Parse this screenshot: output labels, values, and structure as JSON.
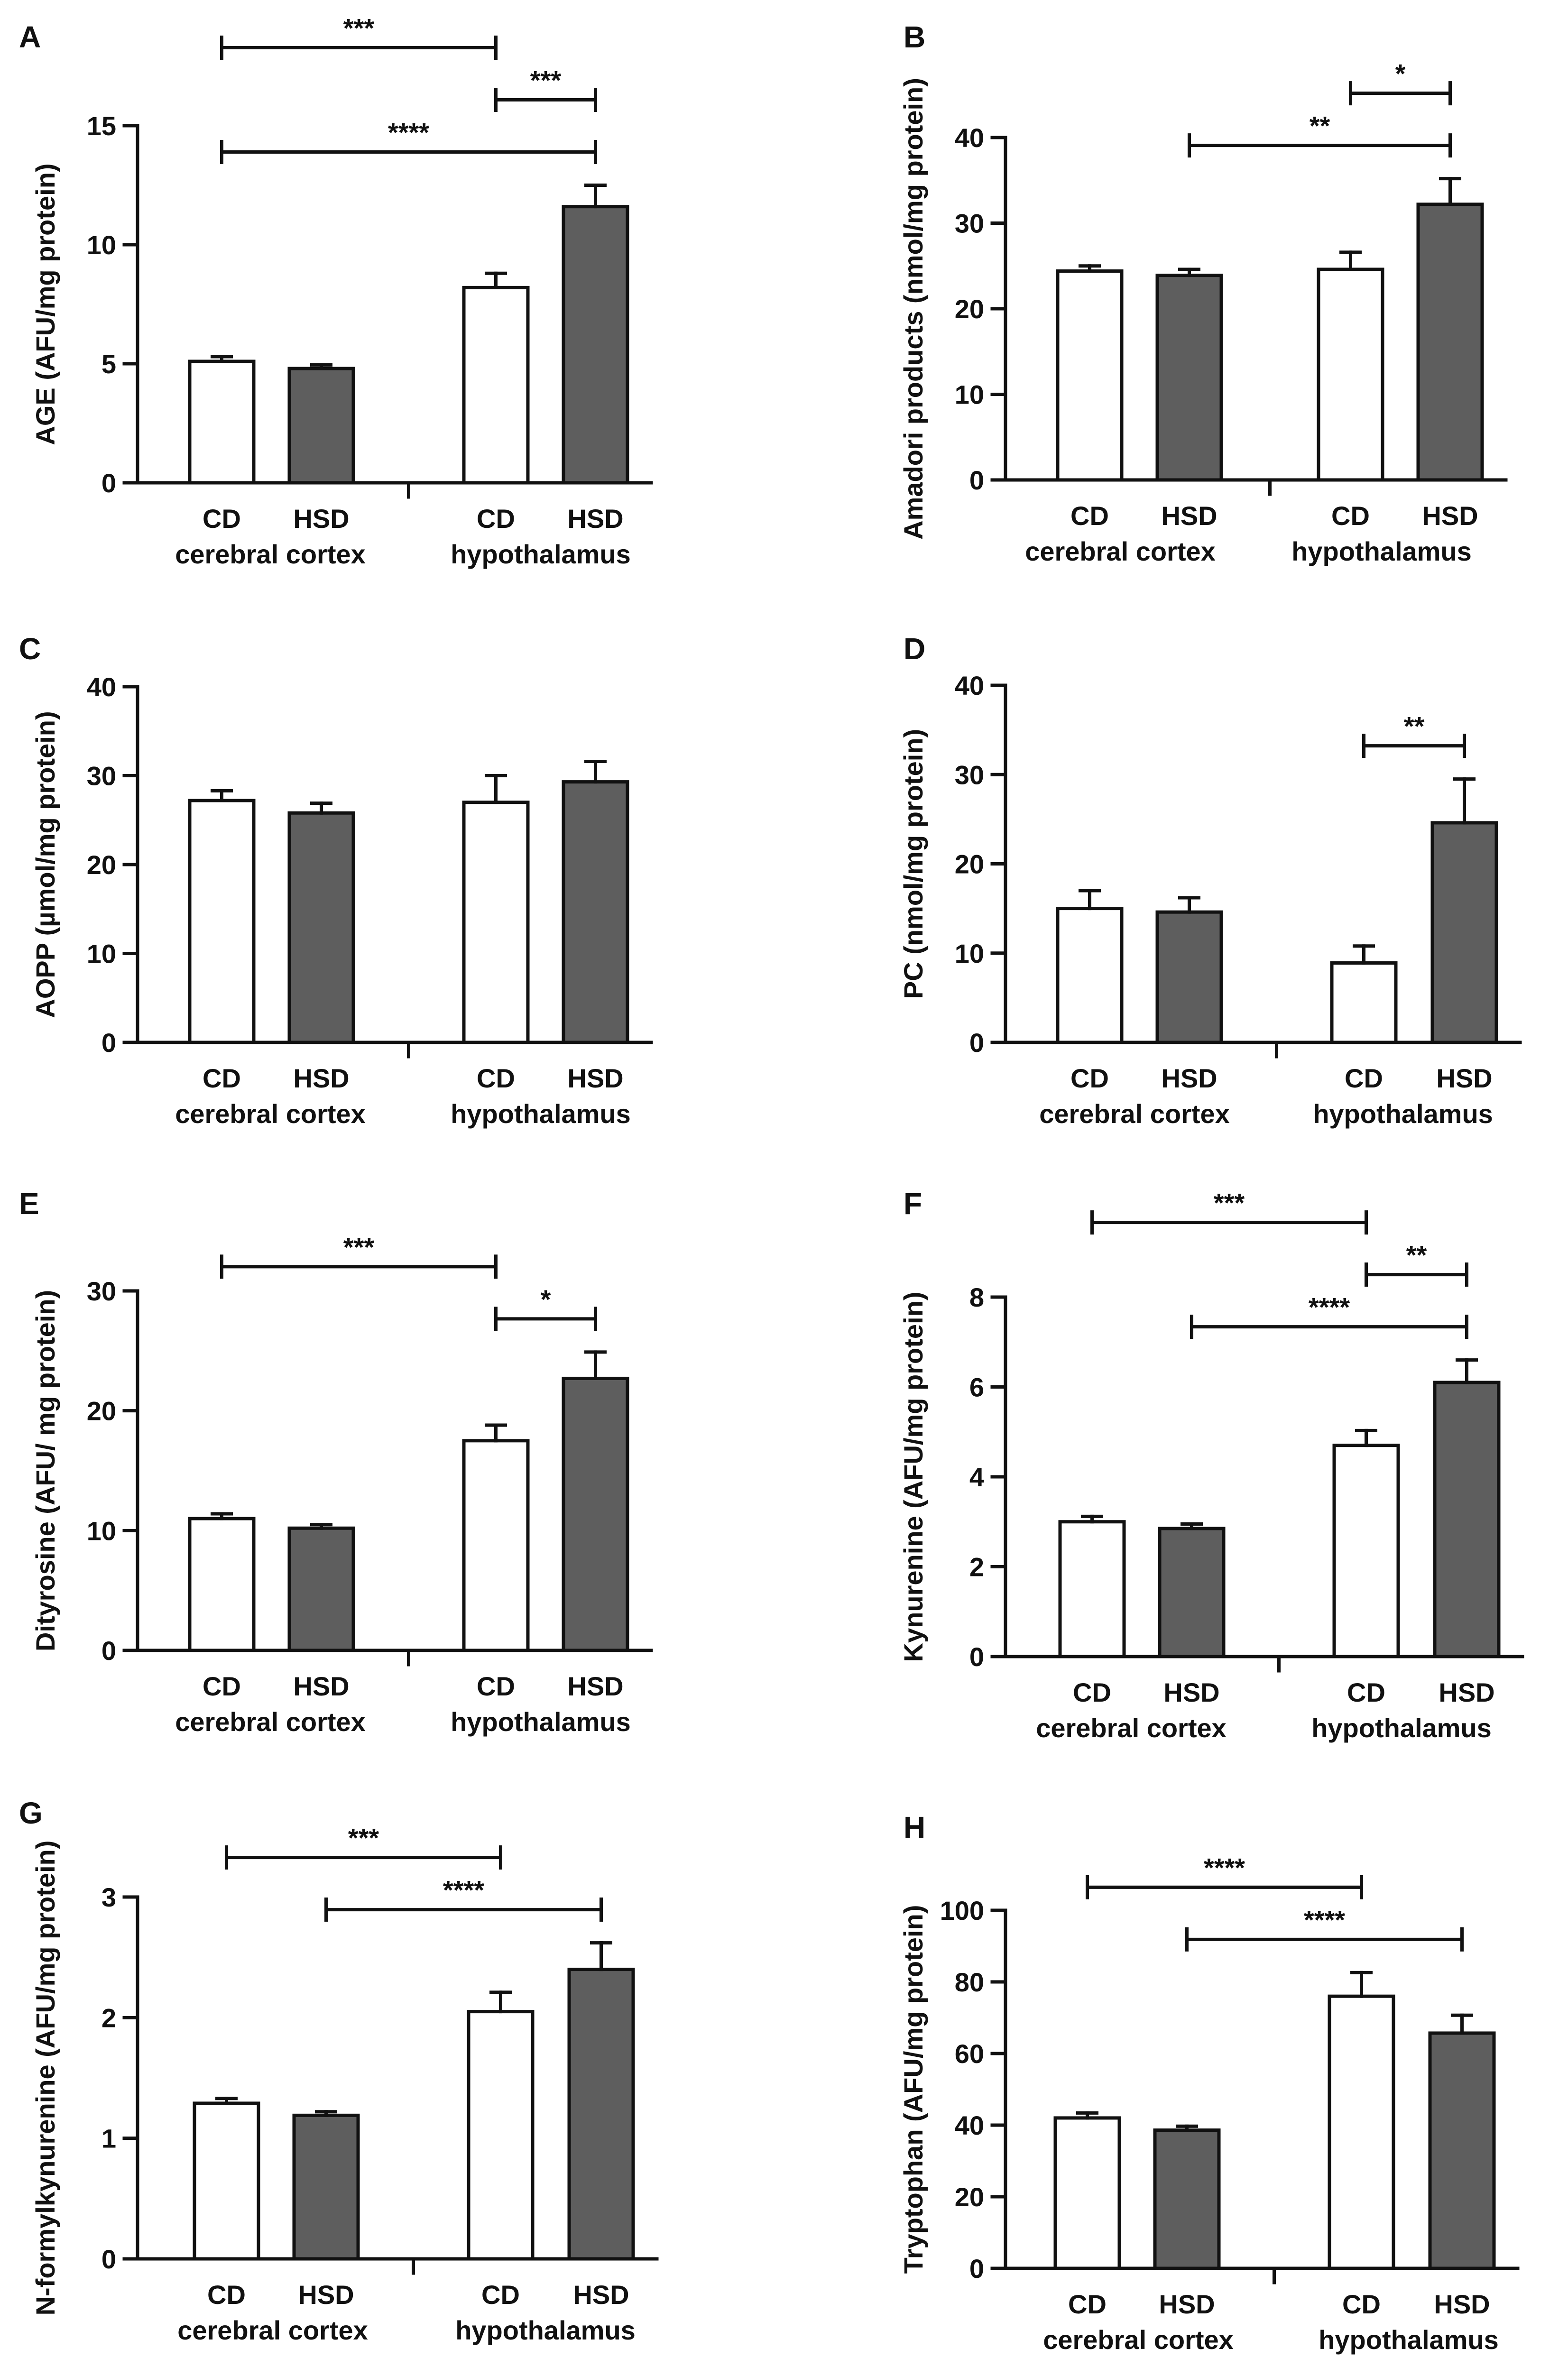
{
  "colors": {
    "cd": "#ffffff",
    "hsd": "#5e5e5e",
    "stroke": "#111111"
  },
  "chart_data": [
    {
      "panel": "A",
      "type": "bar",
      "ylabel": "AGE (AFU/mg protein)",
      "ylim": [
        0,
        15
      ],
      "yticks": [
        0,
        5,
        10,
        15
      ],
      "categories": [
        "CD",
        "HSD",
        "CD",
        "HSD"
      ],
      "groups": [
        "cerebral cortex",
        "hypothalamus"
      ],
      "values": [
        5.1,
        4.8,
        8.2,
        11.6
      ],
      "errors": [
        0.2,
        0.15,
        0.6,
        0.9
      ],
      "significance": [
        {
          "from": 0,
          "to": 3,
          "label": "****"
        },
        {
          "from": 2,
          "to": 3,
          "label": "***"
        },
        {
          "from": 0,
          "to": 2,
          "label": "***"
        }
      ]
    },
    {
      "panel": "B",
      "type": "bar",
      "ylabel": "Amadori products (nmol/mg protein)",
      "ylim": [
        0,
        40
      ],
      "yticks": [
        0,
        10,
        20,
        30,
        40
      ],
      "categories": [
        "CD",
        "HSD",
        "CD",
        "HSD"
      ],
      "groups": [
        "cerebral cortex",
        "hypothalamus"
      ],
      "values": [
        24.4,
        23.9,
        24.6,
        32.2
      ],
      "errors": [
        0.6,
        0.7,
        2.0,
        3.0
      ],
      "significance": [
        {
          "from": 1,
          "to": 3,
          "label": "**"
        },
        {
          "from": 2,
          "to": 3,
          "label": "*"
        }
      ]
    },
    {
      "panel": "C",
      "type": "bar",
      "ylabel": "AOPP (µmol/mg protein)",
      "ylim": [
        0,
        40
      ],
      "yticks": [
        0,
        10,
        20,
        30,
        40
      ],
      "categories": [
        "CD",
        "HSD",
        "CD",
        "HSD"
      ],
      "groups": [
        "cerebral cortex",
        "hypothalamus"
      ],
      "values": [
        27.2,
        25.8,
        27.0,
        29.3
      ],
      "errors": [
        1.1,
        1.1,
        3.0,
        2.3
      ],
      "significance": []
    },
    {
      "panel": "D",
      "type": "bar",
      "ylabel": "PC (nmol/mg protein)",
      "ylim": [
        0,
        40
      ],
      "yticks": [
        0,
        10,
        20,
        30,
        40
      ],
      "categories": [
        "CD",
        "HSD",
        "CD",
        "HSD"
      ],
      "groups": [
        "cerebral cortex",
        "hypothalamus"
      ],
      "values": [
        15.0,
        14.6,
        8.9,
        24.6
      ],
      "errors": [
        2.0,
        1.6,
        1.9,
        4.9
      ],
      "significance": [
        {
          "from": 2,
          "to": 3,
          "label": "**"
        }
      ]
    },
    {
      "panel": "E",
      "type": "bar",
      "ylabel": "Dityrosine (AFU/ mg protein)",
      "ylim": [
        0,
        30
      ],
      "yticks": [
        0,
        10,
        20,
        30
      ],
      "categories": [
        "CD",
        "HSD",
        "CD",
        "HSD"
      ],
      "groups": [
        "cerebral cortex",
        "hypothalamus"
      ],
      "values": [
        11.0,
        10.2,
        17.5,
        22.7
      ],
      "errors": [
        0.4,
        0.3,
        1.3,
        2.2
      ],
      "significance": [
        {
          "from": 2,
          "to": 3,
          "label": "*"
        },
        {
          "from": 0,
          "to": 2,
          "label": "***"
        }
      ]
    },
    {
      "panel": "F",
      "type": "bar",
      "ylabel": "Kynurenine (AFU/mg protein)",
      "ylim": [
        0,
        8
      ],
      "yticks": [
        0,
        2,
        4,
        6,
        8
      ],
      "categories": [
        "CD",
        "HSD",
        "CD",
        "HSD"
      ],
      "groups": [
        "cerebral cortex",
        "hypothalamus"
      ],
      "values": [
        3.0,
        2.85,
        4.7,
        6.1
      ],
      "errors": [
        0.12,
        0.1,
        0.33,
        0.5
      ],
      "significance": [
        {
          "from": 1,
          "to": 3,
          "label": "****"
        },
        {
          "from": 2,
          "to": 3,
          "label": "**"
        },
        {
          "from": 0,
          "to": 2,
          "label": "***"
        }
      ]
    },
    {
      "panel": "G",
      "type": "bar",
      "ylabel": "N-formylkynurenine (AFU/mg protein)",
      "ylim": [
        0,
        3
      ],
      "yticks": [
        0,
        1,
        2,
        3
      ],
      "categories": [
        "CD",
        "HSD",
        "CD",
        "HSD"
      ],
      "groups": [
        "cerebral cortex",
        "hypothalamus"
      ],
      "values": [
        1.29,
        1.19,
        2.05,
        2.4
      ],
      "errors": [
        0.04,
        0.03,
        0.16,
        0.22
      ],
      "significance": [
        {
          "from": 1,
          "to": 3,
          "label": "****"
        },
        {
          "from": 0,
          "to": 2,
          "label": "***"
        }
      ]
    },
    {
      "panel": "H",
      "type": "bar",
      "ylabel": "Tryptophan (AFU/mg protein)",
      "ylim": [
        0,
        100
      ],
      "yticks": [
        0,
        20,
        40,
        60,
        80,
        100
      ],
      "categories": [
        "CD",
        "HSD",
        "CD",
        "HSD"
      ],
      "groups": [
        "cerebral cortex",
        "hypothalamus"
      ],
      "values": [
        42.0,
        38.6,
        76.0,
        65.7
      ],
      "errors": [
        1.4,
        1.1,
        6.6,
        5.0
      ],
      "significance": [
        {
          "from": 1,
          "to": 3,
          "label": "****"
        },
        {
          "from": 0,
          "to": 2,
          "label": "****"
        }
      ]
    }
  ]
}
